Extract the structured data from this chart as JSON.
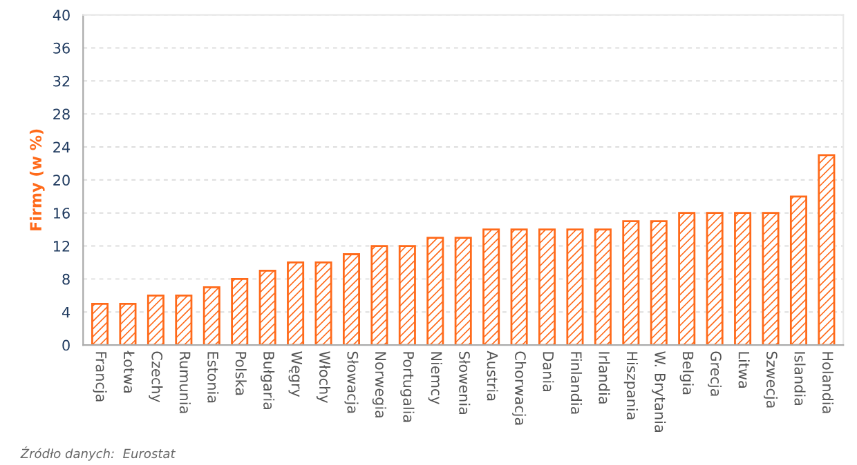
{
  "chart_data": {
    "type": "bar",
    "ylabel": "Firmy (w %)",
    "categories": [
      "Francja",
      "Łotwa",
      "Czechy",
      "Rumunia",
      "Estonia",
      "Polska",
      "Bułgaria",
      "Węgry",
      "Włochy",
      "Słowacja",
      "Norwegia",
      "Portugalia",
      "Niemcy",
      "Słowenia",
      "Austria",
      "Chorwacja",
      "Dania",
      "Finlandia",
      "Irlandia",
      "Hiszpania",
      "W. Brytania",
      "Belgia",
      "Grecja",
      "Litwa",
      "Szwecja",
      "Islandia",
      "Holandia"
    ],
    "values": [
      5,
      5,
      6,
      6,
      7,
      8,
      9,
      10,
      10,
      11,
      12,
      12,
      13,
      13,
      14,
      14,
      14,
      14,
      14,
      15,
      15,
      16,
      16,
      16,
      16,
      18,
      23
    ],
    "color": "#ff6a1a",
    "ylim": [
      0,
      40
    ],
    "yticks": [
      0,
      4,
      8,
      12,
      16,
      20,
      24,
      28,
      32,
      36,
      40
    ],
    "grid": "y",
    "legend": false,
    "annotations": [
      "Źródło danych:  Eurostat"
    ]
  }
}
